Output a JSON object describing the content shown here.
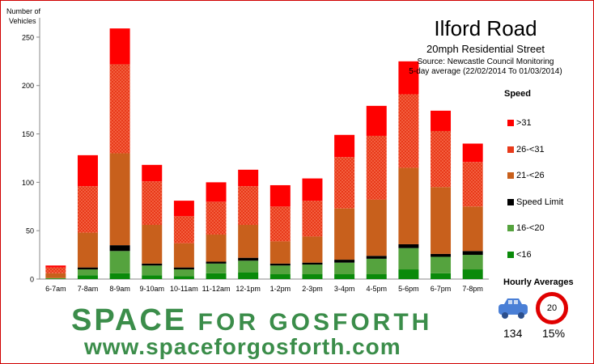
{
  "chart_data": {
    "type": "bar",
    "stacked": true,
    "title": "Ilford Road",
    "subtitle": "20mph Residential Street",
    "source": "Source: Newcastle Council Monitoring",
    "period": "5-day average (22/02/2014 To 01/03/2014)",
    "ylabel_line1": "Number of",
    "ylabel_line2": "Vehicles",
    "ylim": [
      0,
      270
    ],
    "yticks": [
      0,
      50,
      100,
      150,
      200,
      250
    ],
    "grid": false,
    "legend_title": "Speed",
    "legend_position": "right",
    "categories": [
      "6-7am",
      "7-8am",
      "8-9am",
      "9-10am",
      "10-11am",
      "11-12am",
      "12-1pm",
      "1-2pm",
      "2-3pm",
      "3-4pm",
      "4-5pm",
      "5-6pm",
      "6-7pm",
      "7-8pm"
    ],
    "series": [
      {
        "name": "<16",
        "color": "#0a8a0a",
        "pattern": false,
        "values": [
          0.5,
          4,
          6,
          4,
          3,
          6,
          7,
          5,
          5,
          5,
          5,
          10,
          6,
          10
        ]
      },
      {
        "name": "16-<20",
        "color": "#55a33e",
        "pattern": false,
        "values": [
          0.5,
          6,
          23,
          10,
          7,
          10,
          12,
          9,
          10,
          12,
          16,
          22,
          17,
          15
        ]
      },
      {
        "name": "Speed Limit",
        "color": "#000000",
        "pattern": false,
        "values": [
          0,
          2,
          6,
          2,
          2,
          2,
          3,
          2,
          2,
          3,
          3,
          4,
          3,
          4
        ]
      },
      {
        "name": "21-<26",
        "color": "#c8601c",
        "pattern": false,
        "values": [
          5,
          36,
          95,
          40,
          25,
          28,
          34,
          23,
          27,
          53,
          58,
          79,
          69,
          46
        ]
      },
      {
        "name": "26-<31",
        "color": "#e83a1a",
        "pattern": true,
        "values": [
          6,
          48,
          92,
          45,
          28,
          34,
          40,
          36,
          37,
          53,
          66,
          76,
          58,
          46
        ]
      },
      {
        "name": ">31",
        "color": "#ff0000",
        "pattern": false,
        "values": [
          2,
          32,
          37,
          17,
          16,
          20,
          17,
          22,
          23,
          23,
          31,
          34,
          21,
          19
        ]
      }
    ]
  },
  "legend_order": [
    ">31",
    "26-<31",
    "21-<26",
    "Speed Limit",
    "16-<20",
    "<16"
  ],
  "hourly": {
    "title": "Hourly Averages",
    "vehicles": "134",
    "percent": "15%",
    "sign_value": "20",
    "car_icon": "car-icon",
    "sign_icon": "speed-limit-sign-icon"
  },
  "branding": {
    "logo_word1": "SPACE",
    "logo_word2": "FOR GOSFORTH",
    "url": "www.spaceforgosforth.com"
  }
}
